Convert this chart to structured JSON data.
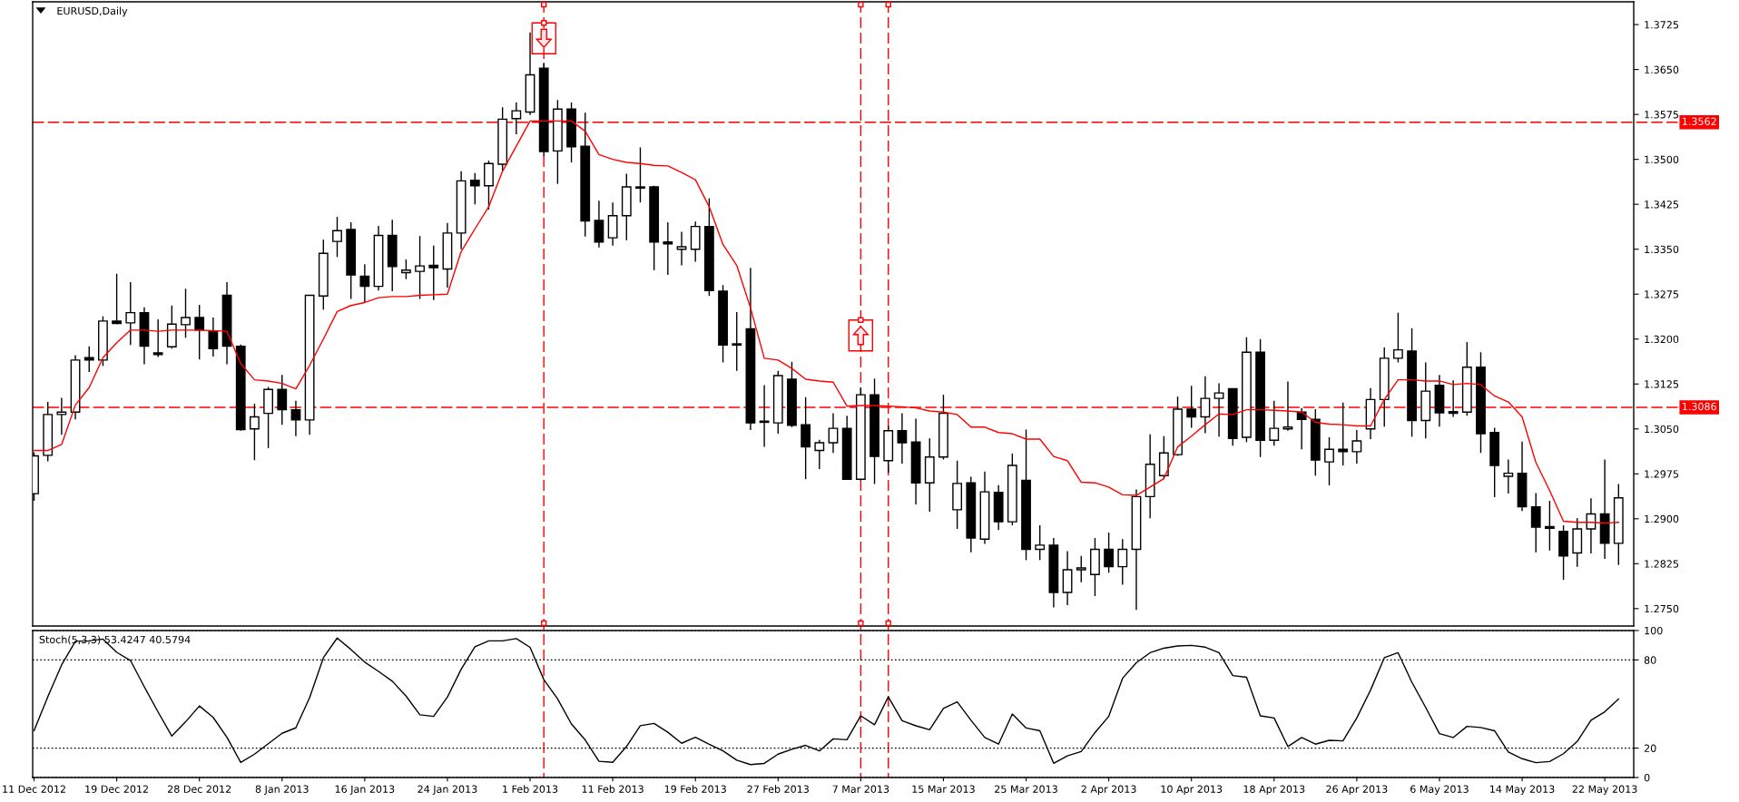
{
  "chart_data": [
    {
      "type": "candlestick",
      "title": "EURUSD,Daily",
      "ohlc": [
        [
          1.2942,
          1.3011,
          1.293,
          1.3005
        ],
        [
          1.3006,
          1.3095,
          1.2996,
          1.3074
        ],
        [
          1.3074,
          1.3102,
          1.304,
          1.3078
        ],
        [
          1.3078,
          1.3173,
          1.3066,
          1.3165
        ],
        [
          1.3169,
          1.3188,
          1.3145,
          1.3165
        ],
        [
          1.3165,
          1.3238,
          1.3155,
          1.323
        ],
        [
          1.323,
          1.3309,
          1.3225,
          1.3226
        ],
        [
          1.3227,
          1.3295,
          1.319,
          1.3244
        ],
        [
          1.3244,
          1.3253,
          1.3158,
          1.3188
        ],
        [
          1.3177,
          1.3233,
          1.317,
          1.3174
        ],
        [
          1.3187,
          1.3256,
          1.3184,
          1.3225
        ],
        [
          1.3224,
          1.3284,
          1.3202,
          1.3236
        ],
        [
          1.3236,
          1.3257,
          1.3166,
          1.3215
        ],
        [
          1.3213,
          1.3236,
          1.3171,
          1.3184
        ],
        [
          1.3273,
          1.3295,
          1.3158,
          1.3188
        ],
        [
          1.3188,
          1.3191,
          1.3047,
          1.3049
        ],
        [
          1.305,
          1.3092,
          1.2998,
          1.307
        ],
        [
          1.3076,
          1.312,
          1.3018,
          1.3116
        ],
        [
          1.3116,
          1.314,
          1.3057,
          1.3082
        ],
        [
          1.3082,
          1.3097,
          1.3038,
          1.3065
        ],
        [
          1.3065,
          1.3273,
          1.304,
          1.3273
        ],
        [
          1.3272,
          1.3366,
          1.3249,
          1.3343
        ],
        [
          1.3363,
          1.3404,
          1.3337,
          1.3381
        ],
        [
          1.3383,
          1.3395,
          1.3267,
          1.3307
        ],
        [
          1.3305,
          1.3325,
          1.326,
          1.3288
        ],
        [
          1.3288,
          1.3389,
          1.3281,
          1.3373
        ],
        [
          1.3373,
          1.3399,
          1.328,
          1.3321
        ],
        [
          1.3311,
          1.3333,
          1.33,
          1.3315
        ],
        [
          1.3313,
          1.3372,
          1.3267,
          1.3322
        ],
        [
          1.3323,
          1.3356,
          1.3265,
          1.3319
        ],
        [
          1.3317,
          1.3394,
          1.3286,
          1.3377
        ],
        [
          1.3377,
          1.348,
          1.335,
          1.3464
        ],
        [
          1.3465,
          1.3477,
          1.3425,
          1.3456
        ],
        [
          1.3456,
          1.3498,
          1.3416,
          1.3493
        ],
        [
          1.3492,
          1.3587,
          1.3481,
          1.3567
        ],
        [
          1.3568,
          1.3595,
          1.3542,
          1.3581
        ],
        [
          1.3579,
          1.3712,
          1.3574,
          1.3641
        ],
        [
          1.3652,
          1.3661,
          1.3505,
          1.3513
        ],
        [
          1.3514,
          1.3599,
          1.3459,
          1.3584
        ],
        [
          1.3584,
          1.3595,
          1.3495,
          1.3521
        ],
        [
          1.3522,
          1.3578,
          1.3371,
          1.3397
        ],
        [
          1.3398,
          1.3431,
          1.3353,
          1.3362
        ],
        [
          1.3369,
          1.3428,
          1.3356,
          1.3406
        ],
        [
          1.3406,
          1.3476,
          1.3365,
          1.3454
        ],
        [
          1.3454,
          1.352,
          1.3428,
          1.3452
        ],
        [
          1.3454,
          1.3456,
          1.3315,
          1.3362
        ],
        [
          1.3362,
          1.3395,
          1.3307,
          1.3359
        ],
        [
          1.335,
          1.3379,
          1.3323,
          1.3354
        ],
        [
          1.335,
          1.3396,
          1.3329,
          1.3388
        ],
        [
          1.3388,
          1.3435,
          1.3272,
          1.3281
        ],
        [
          1.328,
          1.329,
          1.3161,
          1.319
        ],
        [
          1.3192,
          1.3245,
          1.3147,
          1.319
        ],
        [
          1.3217,
          1.3319,
          1.3048,
          1.306
        ],
        [
          1.3063,
          1.3123,
          1.302,
          1.3061
        ],
        [
          1.306,
          1.3147,
          1.3042,
          1.3139
        ],
        [
          1.3133,
          1.3162,
          1.3053,
          1.3056
        ],
        [
          1.3057,
          1.3103,
          1.2966,
          1.302
        ],
        [
          1.3014,
          1.3032,
          1.2983,
          1.3027
        ],
        [
          1.3027,
          1.3076,
          1.301,
          1.3051
        ],
        [
          1.3051,
          1.3072,
          1.2966,
          1.2966
        ],
        [
          1.2966,
          1.3119,
          1.2964,
          1.3107
        ],
        [
          1.3107,
          1.3134,
          1.2958,
          1.3004
        ],
        [
          1.2997,
          1.3055,
          1.2977,
          1.3047
        ],
        [
          1.3047,
          1.3076,
          1.2992,
          1.3027
        ],
        [
          1.3028,
          1.3067,
          1.2924,
          1.296
        ],
        [
          1.296,
          1.3034,
          1.2912,
          1.3003
        ],
        [
          1.3003,
          1.3107,
          1.2999,
          1.3076
        ],
        [
          1.2915,
          1.2997,
          1.2883,
          1.2959
        ],
        [
          1.296,
          1.297,
          1.2844,
          1.2868
        ],
        [
          1.2866,
          1.2979,
          1.2858,
          1.2945
        ],
        [
          1.2944,
          1.2956,
          1.2881,
          1.2895
        ],
        [
          1.2895,
          1.3009,
          1.2889,
          1.2989
        ],
        [
          1.2964,
          1.3049,
          1.2831,
          1.2849
        ],
        [
          1.2849,
          1.2889,
          1.2831,
          1.2856
        ],
        [
          1.2856,
          1.2868,
          1.2752,
          1.2777
        ],
        [
          1.2777,
          1.2846,
          1.2756,
          1.2815
        ],
        [
          1.2815,
          1.2838,
          1.2794,
          1.2818
        ],
        [
          1.2807,
          1.2868,
          1.2771,
          1.2849
        ],
        [
          1.2849,
          1.2877,
          1.281,
          1.282
        ],
        [
          1.282,
          1.2866,
          1.279,
          1.2849
        ],
        [
          1.2849,
          1.2949,
          1.2748,
          1.2937
        ],
        [
          1.2937,
          1.3041,
          1.2901,
          1.2991
        ],
        [
          1.2972,
          1.3038,
          1.2966,
          1.301
        ],
        [
          1.3007,
          1.3104,
          1.3005,
          1.3083
        ],
        [
          1.3083,
          1.3122,
          1.3052,
          1.307
        ],
        [
          1.307,
          1.3138,
          1.3043,
          1.3101
        ],
        [
          1.3101,
          1.3126,
          1.3037,
          1.311
        ],
        [
          1.3117,
          1.3117,
          1.3022,
          1.3034
        ],
        [
          1.3036,
          1.3203,
          1.3028,
          1.3178
        ],
        [
          1.3178,
          1.32,
          1.3003,
          1.3031
        ],
        [
          1.3031,
          1.3097,
          1.3022,
          1.3051
        ],
        [
          1.305,
          1.3129,
          1.3047,
          1.3053
        ],
        [
          1.3078,
          1.3085,
          1.3016,
          1.3066
        ],
        [
          1.3066,
          1.3083,
          1.2972,
          1.2998
        ],
        [
          1.2995,
          1.3036,
          1.2956,
          1.3016
        ],
        [
          1.3016,
          1.3094,
          1.2989,
          1.3012
        ],
        [
          1.3012,
          1.3048,
          1.2992,
          1.303
        ],
        [
          1.305,
          1.3118,
          1.3033,
          1.3099
        ],
        [
          1.3099,
          1.3186,
          1.3054,
          1.3168
        ],
        [
          1.3168,
          1.3244,
          1.3161,
          1.3182
        ],
        [
          1.318,
          1.3218,
          1.3037,
          1.3064
        ],
        [
          1.3064,
          1.3161,
          1.3034,
          1.3113
        ],
        [
          1.3123,
          1.314,
          1.3054,
          1.3077
        ],
        [
          1.3079,
          1.3131,
          1.307,
          1.3076
        ],
        [
          1.3078,
          1.3195,
          1.3072,
          1.3153
        ],
        [
          1.3153,
          1.3178,
          1.301,
          1.3042
        ],
        [
          1.3044,
          1.3052,
          1.2936,
          1.2989
        ],
        [
          1.2971,
          1.2999,
          1.2942,
          1.2976
        ],
        [
          1.2976,
          1.3029,
          1.2913,
          1.292
        ],
        [
          1.292,
          1.2943,
          1.2844,
          1.2886
        ],
        [
          1.2887,
          1.293,
          1.2847,
          1.2884
        ],
        [
          1.2879,
          1.2889,
          1.2798,
          1.2838
        ],
        [
          1.2843,
          1.2901,
          1.282,
          1.2883
        ],
        [
          1.2883,
          1.2934,
          1.2842,
          1.2908
        ],
        [
          1.2908,
          1.2999,
          1.2833,
          1.2859
        ],
        [
          1.2859,
          1.2958,
          1.2823,
          1.2935
        ]
      ],
      "series": [
        {
          "type": "line",
          "color": "#ff0000",
          "values": [
            1.3014,
            1.3014,
            1.3024,
            1.309,
            1.3119,
            1.3169,
            1.3194,
            1.3215,
            1.3215,
            1.3213,
            1.3215,
            1.3215,
            1.3215,
            1.3214,
            1.3213,
            1.3159,
            1.3132,
            1.313,
            1.3126,
            1.3117,
            1.3156,
            1.32,
            1.3246,
            1.3256,
            1.3261,
            1.3269,
            1.3271,
            1.3271,
            1.3273,
            1.3274,
            1.3275,
            1.3346,
            1.3384,
            1.3421,
            1.348,
            1.3522,
            1.3564,
            1.3564,
            1.3564,
            1.3564,
            1.3547,
            1.3508,
            1.35,
            1.3495,
            1.3493,
            1.349,
            1.3489,
            1.3478,
            1.3466,
            1.3421,
            1.3358,
            1.3323,
            1.3252,
            1.3168,
            1.3165,
            1.3151,
            1.3133,
            1.313,
            1.3128,
            1.3088,
            1.3089,
            1.3089,
            1.3088,
            1.3087,
            1.3085,
            1.308,
            1.3078,
            1.3074,
            1.3053,
            1.3053,
            1.3044,
            1.3042,
            1.3033,
            1.3033,
            1.3004,
            1.2997,
            1.2961,
            1.296,
            1.2953,
            1.294,
            1.2939,
            1.2953,
            1.2967,
            1.302,
            1.3038,
            1.3057,
            1.3075,
            1.3074,
            1.3082,
            1.3082,
            1.3081,
            1.308,
            1.3078,
            1.3061,
            1.3058,
            1.3057,
            1.3055,
            1.3055,
            1.3099,
            1.3132,
            1.3132,
            1.313,
            1.313,
            1.3124,
            1.3126,
            1.3124,
            1.3105,
            1.3095,
            1.307,
            1.2994,
            1.2947,
            1.2896,
            1.2894,
            1.2894,
            1.2893,
            1.2894
          ]
        }
      ],
      "ylim": [
        1.2721,
        1.3763
      ],
      "yticks": [
        {
          "value": 1.275,
          "label": "1.2750"
        },
        {
          "value": 1.2825,
          "label": "1.2825"
        },
        {
          "value": 1.29,
          "label": "1.2900"
        },
        {
          "value": 1.2975,
          "label": "1.2975"
        },
        {
          "value": 1.305,
          "label": "1.3050"
        },
        {
          "value": 1.3125,
          "label": "1.3125"
        },
        {
          "value": 1.32,
          "label": "1.3200"
        },
        {
          "value": 1.3275,
          "label": "1.3275"
        },
        {
          "value": 1.335,
          "label": "1.3350"
        },
        {
          "value": 1.3425,
          "label": "1.3425"
        },
        {
          "value": 1.35,
          "label": "1.3500"
        },
        {
          "value": 1.3575,
          "label": "1.3575"
        },
        {
          "value": 1.365,
          "label": "1.3650"
        },
        {
          "value": 1.3725,
          "label": "1.3725"
        }
      ],
      "ref_lines": [
        {
          "axis": "y",
          "value": 1.3562,
          "label": "1.3562",
          "color": "#ff0000",
          "line_style": "dashed"
        },
        {
          "axis": "y",
          "value": 1.3086,
          "label": "1.3086",
          "color": "#ff0000",
          "line_style": "dashed"
        }
      ]
    },
    {
      "type": "line",
      "title": "Stoch(5,3,3) 53.4247 40.5794",
      "categories": [
        "11 Dec 2012",
        null,
        null,
        null,
        null,
        null,
        "19 Dec 2012",
        null,
        null,
        null,
        null,
        null,
        "28 Dec 2012",
        null,
        null,
        null,
        null,
        null,
        "8 Jan 2013",
        null,
        null,
        null,
        null,
        null,
        "16 Jan 2013",
        null,
        null,
        null,
        null,
        null,
        "24 Jan 2013",
        null,
        null,
        null,
        null,
        null,
        "1 Feb 2013",
        null,
        null,
        null,
        null,
        null,
        "11 Feb 2013",
        null,
        null,
        null,
        null,
        null,
        "19 Feb 2013",
        null,
        null,
        null,
        null,
        null,
        "27 Feb 2013",
        null,
        null,
        null,
        null,
        null,
        "7 Mar 2013",
        null,
        null,
        null,
        null,
        null,
        "15 Mar 2013",
        null,
        null,
        null,
        null,
        null,
        "25 Mar 2013",
        null,
        null,
        null,
        null,
        null,
        "2 Apr 2013",
        null,
        null,
        null,
        null,
        null,
        "10 Apr 2013",
        null,
        null,
        null,
        null,
        null,
        "18 Apr 2013",
        null,
        null,
        null,
        null,
        null,
        "26 Apr 2013",
        null,
        null,
        null,
        null,
        null,
        "6 May 2013",
        null,
        null,
        null,
        null,
        null,
        "14 May 2013",
        null,
        null,
        null,
        null,
        null,
        "22 May 2013",
        null
      ],
      "series": [
        {
          "color": "#000000",
          "values": [
            31.9,
            55.0,
            76.6,
            92.7,
            93.0,
            94.2,
            85.2,
            79.6,
            61.7,
            44.6,
            28.2,
            37.9,
            48.7,
            40.9,
            27.4,
            10.3,
            15.9,
            23.0,
            30.1,
            33.8,
            54.3,
            81.5,
            94.9,
            87.1,
            78.5,
            72.2,
            65.5,
            55.4,
            42.7,
            41.6,
            54.7,
            73.7,
            88.9,
            93.0,
            93.0,
            94.5,
            88.6,
            66.6,
            53.5,
            36.4,
            25.6,
            11.0,
            10.3,
            21.1,
            35.3,
            36.8,
            30.8,
            23.3,
            27.4,
            22.6,
            18.1,
            11.8,
            8.8,
            9.6,
            15.9,
            19.2,
            21.9,
            18.1,
            26.3,
            25.7,
            42.0,
            35.9,
            54.9,
            38.6,
            35.2,
            32.5,
            47.0,
            51.5,
            39.0,
            27.2,
            22.7,
            43.2,
            33.7,
            31.8,
            9.7,
            14.7,
            17.7,
            30.6,
            41.6,
            67.5,
            78.1,
            84.9,
            88.0,
            89.5,
            89.9,
            88.7,
            84.9,
            69.4,
            68.2,
            42.0,
            40.5,
            21.1,
            27.2,
            22.7,
            25.3,
            24.9,
            40.5,
            59.5,
            81.5,
            84.9,
            64.8,
            47.7,
            29.9,
            27.2,
            34.8,
            34.0,
            31.8,
            17.3,
            12.8,
            10.1,
            10.9,
            16.2,
            24.5,
            39.0,
            44.7,
            53.4
          ]
        }
      ],
      "ylim": [
        0,
        100
      ],
      "yticks": [
        0,
        20,
        80,
        100
      ],
      "grid": "y"
    }
  ]
}
